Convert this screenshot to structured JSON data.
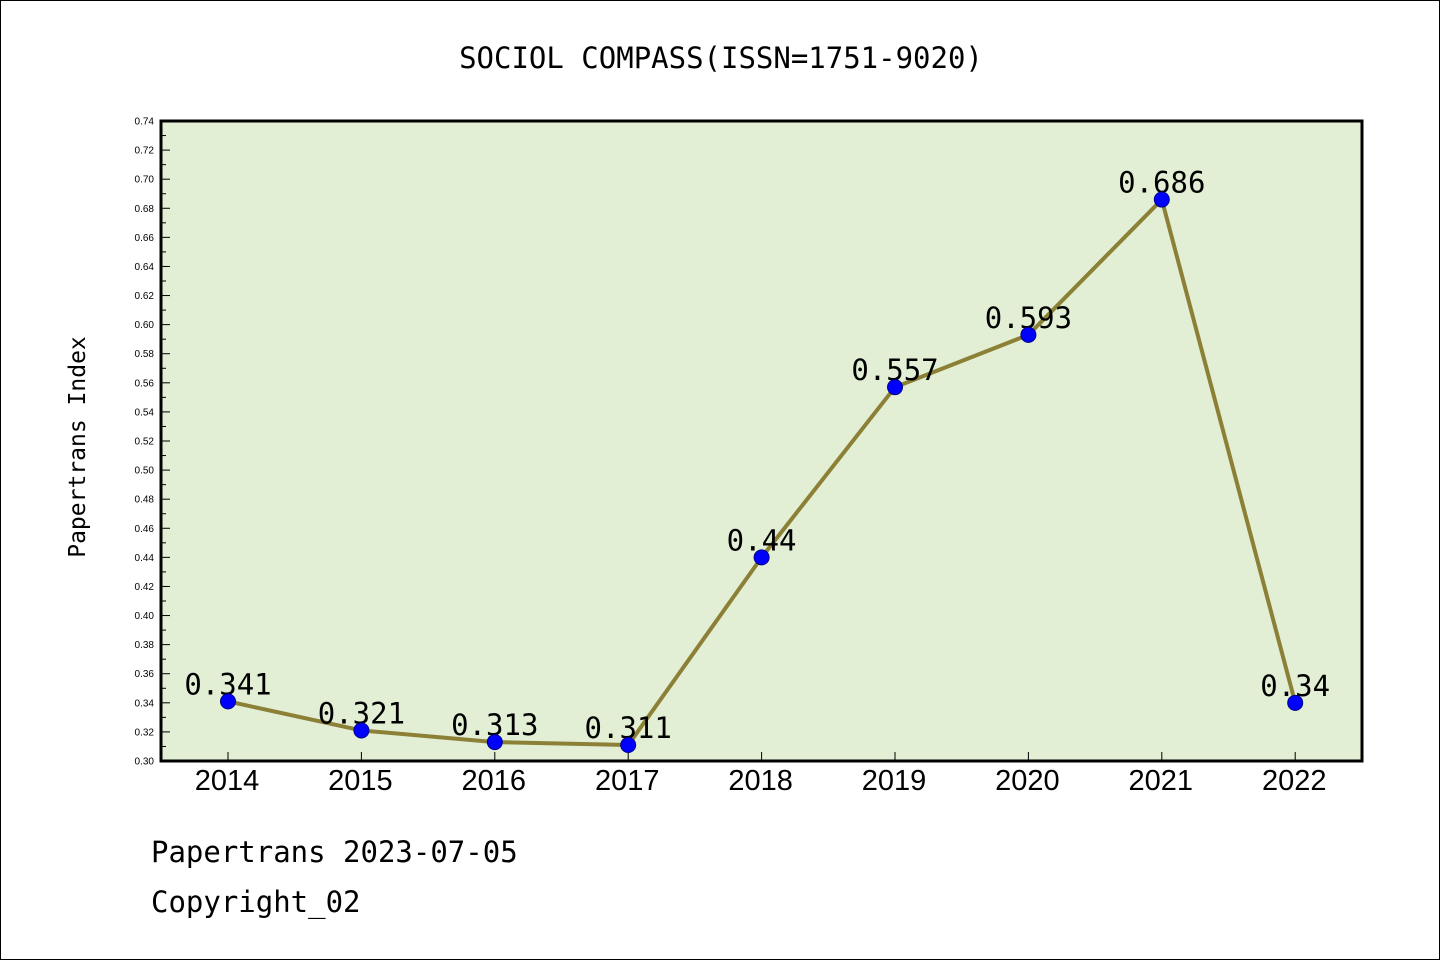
{
  "chart_data": {
    "type": "line",
    "title": "SOCIOL COMPASS(ISSN=1751-9020)",
    "ylabel": "Papertrans Index",
    "xlabel": "",
    "categories": [
      "2014",
      "2015",
      "2016",
      "2017",
      "2018",
      "2019",
      "2020",
      "2021",
      "2022"
    ],
    "values": [
      0.341,
      0.321,
      0.313,
      0.311,
      0.44,
      0.557,
      0.593,
      0.686,
      0.34
    ],
    "data_labels": [
      "0.341",
      "0.321",
      "0.313",
      "0.311",
      "0.44",
      "0.557",
      "0.593",
      "0.686",
      "0.34"
    ],
    "ylim": [
      0.3,
      0.74
    ],
    "yticks": [
      "0.30",
      "0.32",
      "0.34",
      "0.36",
      "0.38",
      "0.40",
      "0.42",
      "0.44",
      "0.46",
      "0.48",
      "0.50",
      "0.52",
      "0.54",
      "0.56",
      "0.58",
      "0.60",
      "0.62",
      "0.64",
      "0.66",
      "0.68",
      "0.70",
      "0.72",
      "0.74"
    ],
    "grid": false,
    "colors": {
      "plot_background": "#e2efd5",
      "line": "#8b8035",
      "marker": "#0000ff"
    }
  },
  "footer": {
    "line1": "Papertrans 2023-07-05",
    "line2": "Copyright_02"
  }
}
